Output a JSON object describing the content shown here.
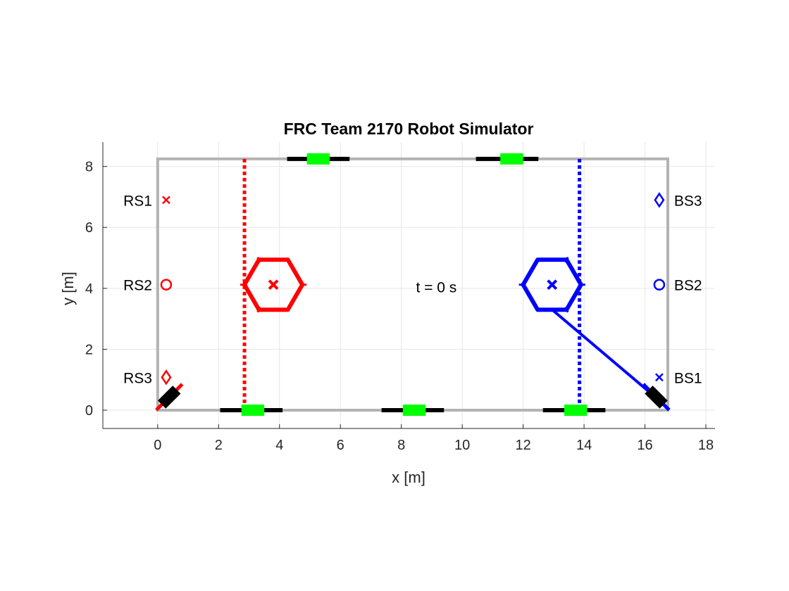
{
  "chart_data": {
    "type": "scatter",
    "title": "FRC Team 2170 Robot Simulator",
    "xlabel": "x [m]",
    "ylabel": "y [m]",
    "xlim": [
      -1.8,
      18.3
    ],
    "ylim": [
      -0.6,
      8.8
    ],
    "xticks": [
      0,
      2,
      4,
      6,
      8,
      10,
      12,
      14,
      16,
      18
    ],
    "yticks": [
      0,
      2,
      4,
      6,
      8
    ],
    "grid": true,
    "colors": {
      "red": "#ff0000",
      "blue": "#0000ff",
      "field": "#b3b3b3",
      "green": "#00ff00",
      "black": "#000000",
      "grid": "#e6e6e6",
      "axis": "#262626"
    },
    "field_boundary": {
      "x": [
        0,
        16.75
      ],
      "y": [
        0,
        8.25
      ]
    },
    "red_line_x": 2.85,
    "blue_line_x": 13.85,
    "station_markers": [
      {
        "label": "RS1",
        "x": 0.28,
        "y": 6.9,
        "marker": "x",
        "color": "red",
        "side": "left"
      },
      {
        "label": "RS2",
        "x": 0.28,
        "y": 4.12,
        "marker": "o",
        "color": "red",
        "side": "left"
      },
      {
        "label": "RS3",
        "x": 0.28,
        "y": 1.08,
        "marker": "diamond",
        "color": "red",
        "side": "left"
      },
      {
        "label": "BS1",
        "x": 16.47,
        "y": 1.08,
        "marker": "x",
        "color": "blue",
        "side": "right"
      },
      {
        "label": "BS2",
        "x": 16.47,
        "y": 4.12,
        "marker": "o",
        "color": "blue",
        "side": "right"
      },
      {
        "label": "BS3",
        "x": 16.47,
        "y": 6.9,
        "marker": "diamond",
        "color": "blue",
        "side": "right"
      }
    ],
    "robots": [
      {
        "team": "red",
        "x": 3.8,
        "y": 4.12,
        "radius": 0.95,
        "color": "red"
      },
      {
        "team": "blue",
        "x": 12.95,
        "y": 4.12,
        "radius": 0.95,
        "color": "blue"
      }
    ],
    "blue_robot_path": {
      "x": [
        12.95,
        16.2
      ],
      "y": [
        3.3,
        0.55
      ]
    },
    "bottom_rails": [
      {
        "x": [
          2.05,
          4.1
        ],
        "y": 0,
        "pad": [
          2.75,
          3.5
        ]
      },
      {
        "x": [
          7.35,
          9.4
        ],
        "y": 0,
        "pad": [
          8.05,
          8.8
        ]
      },
      {
        "x": [
          12.65,
          14.7
        ],
        "y": 0,
        "pad": [
          13.35,
          14.1
        ]
      }
    ],
    "top_rails": [
      {
        "x": [
          4.25,
          6.3
        ],
        "y": 8.25,
        "pad": [
          4.9,
          5.65
        ]
      },
      {
        "x": [
          10.45,
          12.5
        ],
        "y": 8.25,
        "pad": [
          11.25,
          12.0
        ]
      }
    ],
    "corner_chargers": [
      {
        "x": 0.38,
        "y": 0.43,
        "angle": -45,
        "color": "red"
      },
      {
        "x": 16.37,
        "y": 0.43,
        "angle": 45,
        "color": "blue"
      }
    ],
    "time_label": "t = 0 s",
    "time_label_pos": {
      "x": 9.15,
      "y": 4.05
    }
  }
}
